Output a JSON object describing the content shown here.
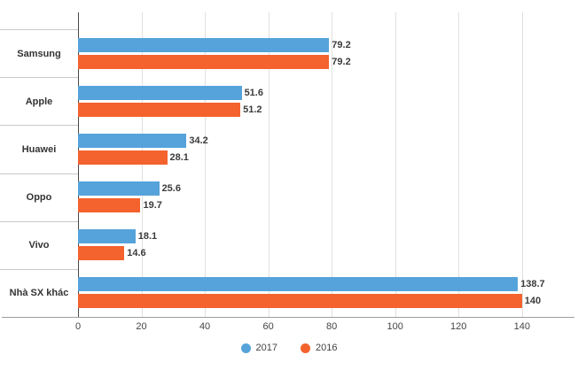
{
  "chart_data": {
    "type": "bar",
    "orientation": "horizontal",
    "title": "",
    "categories": [
      "Samsung",
      "Apple",
      "Huawei",
      "Oppo",
      "Vivo",
      "Nhà SX khác"
    ],
    "series": [
      {
        "name": "2017",
        "color": "#55a3da",
        "values": [
          79.2,
          51.6,
          34.2,
          25.6,
          18.1,
          138.7
        ]
      },
      {
        "name": "2016",
        "color": "#f4622d",
        "values": [
          79.2,
          51.2,
          28.1,
          19.7,
          14.6,
          140
        ]
      }
    ],
    "value_labels": [
      [
        "79.2",
        "79.2"
      ],
      [
        "51.6",
        "51.2"
      ],
      [
        "34.2",
        "28.1"
      ],
      [
        "25.6",
        "19.7"
      ],
      [
        "18.1",
        "14.6"
      ],
      [
        "138.7",
        "140"
      ]
    ],
    "x_ticks": [
      "0",
      "20",
      "40",
      "60",
      "80",
      "100",
      "120",
      "140"
    ],
    "axis_max": 156,
    "grid": true,
    "legend_position": "bottom"
  },
  "colors": {
    "grid_line": "#e0e0e0",
    "row_separator": "#c9c9c9",
    "y_axis": "#4a4a4a",
    "x_axis": "#9e9e9e"
  }
}
